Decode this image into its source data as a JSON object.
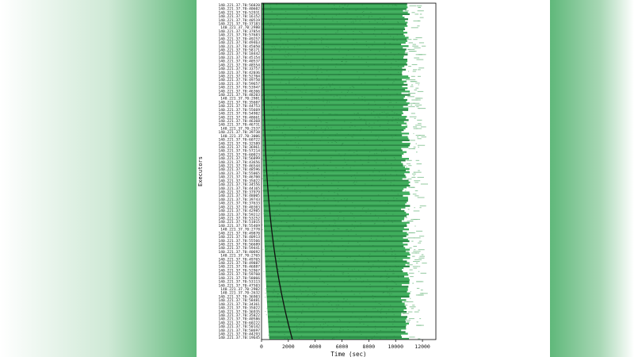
{
  "chart_data": {
    "type": "heatmap",
    "title": "",
    "xlabel": "Time (sec)",
    "ylabel": "Executors",
    "xlim": [
      0,
      13000
    ],
    "x_ticks": [
      0,
      2000,
      4000,
      6000,
      8000,
      10000,
      12000
    ],
    "grid": false,
    "legend": "none",
    "executors": [
      "140.221.37.70:56820",
      "140.221.37.70:40602",
      "140.221.37.70:52931",
      "140.221.37.70:16152",
      "140.221.37.70:40519",
      "140.221.37.70:37183",
      "140.221.37.70:2980",
      "140.221.37.70:37854",
      "140.221.37.70:57683",
      "140.221.37.70:49257",
      "140.221.37.70:49463",
      "140.221.37.70:45050",
      "140.221.37.70:58171",
      "140.221.37.70:18442",
      "140.221.37.70:45154",
      "140.221.37.70:40537",
      "140.221.37.70:48554",
      "140.221.37.70:33757",
      "140.221.37.70:42036",
      "140.221.37.70:52704",
      "140.221.37.70:49750",
      "140.221.37.70:59657",
      "140.221.37.70:53947",
      "140.221.37.70:46366",
      "140.221.37.70:48203",
      "140.221.37.70:2981",
      "140.221.37.70:35607",
      "140.221.37.70:44753",
      "140.221.37.70:55669",
      "140.221.37.70:54902",
      "140.221.37.70:48661",
      "140.221.37.70:46368",
      "140.221.37.70:46731",
      "140.221.37.70:2537",
      "140.221.37.70:39738",
      "140.221.37.70:3006",
      "140.221.37.70:60722",
      "140.221.37.70:32589",
      "140.221.37.70:36961",
      "140.221.37.70:57214",
      "140.221.37.70:60023",
      "140.221.37.70:56899",
      "140.221.37.70:43656",
      "140.221.37.70:46544",
      "140.221.37.70:48596",
      "140.221.37.70:55065",
      "140.221.37.70:46700",
      "140.221.37.70:35022",
      "140.221.37.70:34556",
      "140.221.37.70:44165",
      "140.221.37.70:37979",
      "140.221.37.70:48005",
      "140.221.37.70:39743",
      "140.221.37.70:37633",
      "140.221.37.70:40303",
      "140.221.37.70:42985",
      "140.221.37.70:59212",
      "140.221.37.70:53252",
      "140.221.37.70:51015",
      "140.221.37.70:55469",
      "140.221.37.70:2778",
      "140.221.37.70:49870",
      "140.221.37.70:40913",
      "140.221.37.70:55566",
      "140.221.37.70:56689",
      "140.221.37.70:59441",
      "140.221.37.70:40692",
      "140.221.37.70:2765",
      "140.221.37.70:49765",
      "140.221.37.70:49887",
      "140.221.37.70:46887",
      "140.221.37.70:52967",
      "140.221.37.70:59760",
      "140.221.37.70:58066",
      "140.221.37.70:53113",
      "140.221.37.70:47503",
      "140.221.37.70:2902",
      "140.221.37.70:2632",
      "140.221.37.70:36903",
      "140.221.37.70:58481",
      "140.221.37.70:34361",
      "140.221.37.70:35022",
      "140.221.37.70:36935",
      "140.221.37.70:35822",
      "140.221.37.70:40586",
      "140.221.37.70:60222",
      "140.221.37.70:50142",
      "140.221.37.70:58697",
      "140.221.37.70:44293",
      "140.221.37.70:19645"
    ],
    "series": [
      {
        "kind": "task-activity",
        "color": "#3fae5c",
        "solid_until": 10200,
        "ragged_end_min": 10400,
        "ragged_end_max": 11100,
        "sparse_tail_until": 12600
      },
      {
        "kind": "startup-curve",
        "color": "#111111",
        "x_at_top": 150,
        "x_at_bottom": 2300
      }
    ],
    "colors": {
      "activity": "#3fae5c",
      "activity_dark": "#2a8a45",
      "curve": "#111111"
    }
  }
}
